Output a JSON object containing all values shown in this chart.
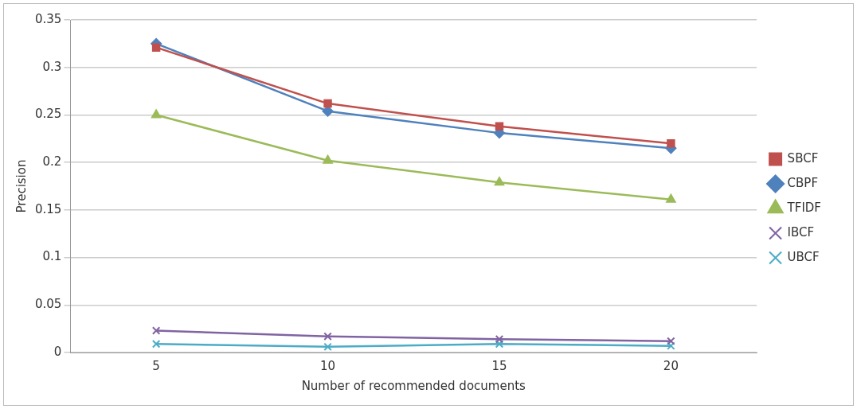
{
  "chart_data": {
    "type": "line",
    "xlabel": "Number of recommended documents",
    "ylabel": "Precision",
    "categories": [
      "5",
      "10",
      "15",
      "20"
    ],
    "ylim": [
      0,
      0.35
    ],
    "yticks": [
      0,
      0.05,
      0.1,
      0.15,
      0.2,
      0.25,
      0.3,
      0.35
    ],
    "grid": "y",
    "legend": "right",
    "line_style": "solid",
    "series": [
      {
        "name": "SBCF",
        "color": "#c0504d",
        "marker": "square",
        "values": [
          0.321,
          0.262,
          0.238,
          0.22
        ]
      },
      {
        "name": "CBPF",
        "color": "#4f81bd",
        "marker": "diamond",
        "values": [
          0.325,
          0.254,
          0.231,
          0.215
        ]
      },
      {
        "name": "TFIDF",
        "color": "#9bbb59",
        "marker": "triangle",
        "values": [
          0.25,
          0.202,
          0.179,
          0.161
        ]
      },
      {
        "name": "IBCF",
        "color": "#8064a2",
        "marker": "cross",
        "values": [
          0.023,
          0.017,
          0.014,
          0.012
        ]
      },
      {
        "name": "UBCF",
        "color": "#4bacc6",
        "marker": "cross",
        "values": [
          0.009,
          0.006,
          0.009,
          0.007
        ]
      }
    ]
  }
}
